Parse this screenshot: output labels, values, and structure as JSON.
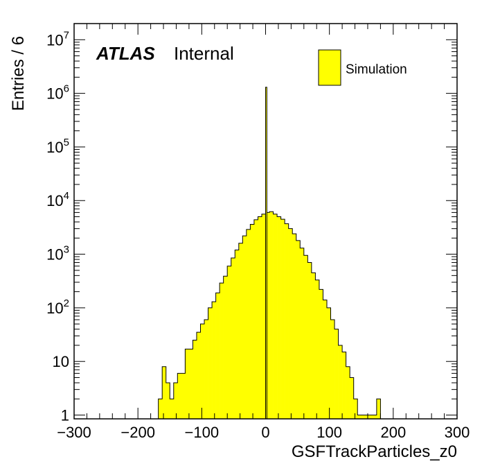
{
  "chart_data": {
    "type": "bar",
    "histogram": true,
    "title": "",
    "xlabel": "GSFTrackParticles_z0",
    "ylabel": "Entries / 6",
    "experiment_label": "ATLAS",
    "status_label": "Internal",
    "xlim": [
      -300,
      300
    ],
    "ylim": [
      0.85,
      20000000
    ],
    "log_y": true,
    "bin_width": 6,
    "x_ticks": [
      {
        "value": -300,
        "label": "−300"
      },
      {
        "value": -200,
        "label": "−200"
      },
      {
        "value": -100,
        "label": "−100"
      },
      {
        "value": 0,
        "label": "0"
      },
      {
        "value": 100,
        "label": "100"
      },
      {
        "value": 200,
        "label": "200"
      },
      {
        "value": 300,
        "label": "300"
      }
    ],
    "y_ticks": [
      {
        "value": 1,
        "base": "1",
        "exp": ""
      },
      {
        "value": 10,
        "base": "10",
        "exp": ""
      },
      {
        "value": 100,
        "base": "10",
        "exp": "2"
      },
      {
        "value": 1000,
        "base": "10",
        "exp": "3"
      },
      {
        "value": 10000,
        "base": "10",
        "exp": "4"
      },
      {
        "value": 100000,
        "base": "10",
        "exp": "5"
      },
      {
        "value": 1000000,
        "base": "10",
        "exp": "6"
      },
      {
        "value": 10000000,
        "base": "10",
        "exp": "7"
      }
    ],
    "legend": {
      "position": "top-right",
      "entries": [
        "Simulation"
      ]
    },
    "series": [
      {
        "name": "Simulation",
        "color": "#ffff00",
        "edgecolor": "#000000",
        "x_low_edges": [
          -168,
          -162,
          -156,
          -150,
          -144,
          -138,
          -132,
          -126,
          -120,
          -114,
          -108,
          -102,
          -96,
          -90,
          -84,
          -78,
          -72,
          -66,
          -60,
          -54,
          -48,
          -42,
          -36,
          -30,
          -24,
          -18,
          -12,
          -6,
          0,
          6,
          12,
          18,
          24,
          30,
          36,
          42,
          48,
          54,
          60,
          66,
          72,
          78,
          84,
          90,
          96,
          102,
          108,
          114,
          120,
          126,
          132,
          138,
          144,
          150,
          156,
          162,
          168,
          174
        ],
        "values": [
          2,
          8,
          4,
          2,
          4,
          6,
          6,
          17,
          17,
          25,
          35,
          50,
          60,
          100,
          130,
          190,
          290,
          390,
          600,
          850,
          1200,
          1600,
          2200,
          2900,
          3600,
          4400,
          5000,
          5600,
          6000,
          6200,
          5600,
          5000,
          4500,
          3700,
          3000,
          2400,
          1800,
          1300,
          950,
          700,
          450,
          330,
          220,
          140,
          100,
          60,
          40,
          20,
          15,
          8,
          5,
          2,
          1,
          1,
          1,
          1,
          1,
          2
        ]
      }
    ],
    "spike": {
      "x_low": 0,
      "x_high": 2,
      "value": 1300000
    }
  }
}
